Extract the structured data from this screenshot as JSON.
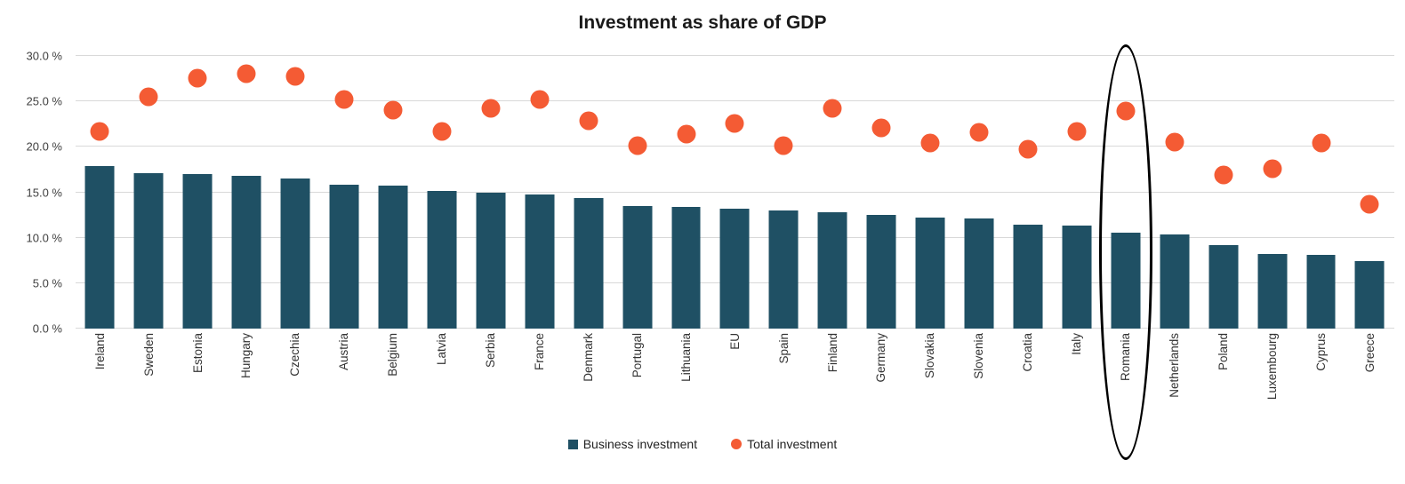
{
  "colors": {
    "bar": "#1f5064",
    "dot": "#f45b34",
    "grid": "#d9d9d9",
    "text": "#333333",
    "annotation": "#000000"
  },
  "y_axis": {
    "ticks": [
      {
        "label": "0.0 %",
        "value": 0
      },
      {
        "label": "5.0 %",
        "value": 5
      },
      {
        "label": "10.0 %",
        "value": 10
      },
      {
        "label": "15.0 %",
        "value": 15
      },
      {
        "label": "20.0 %",
        "value": 20
      },
      {
        "label": "25.0 %",
        "value": 25
      },
      {
        "label": "30.0 %",
        "value": 30
      }
    ]
  },
  "chart_data": {
    "type": "bar",
    "title": "Investment as share of GDP",
    "categories": [
      "Ireland",
      "Sweden",
      "Estonia",
      "Hungary",
      "Czechia",
      "Austria",
      "Belgium",
      "Latvia",
      "Serbia",
      "France",
      "Denmark",
      "Portugal",
      "Lithuania",
      "EU",
      "Spain",
      "Finland",
      "Germany",
      "Slovakia",
      "Slovenia",
      "Croatia",
      "Italy",
      "Romania",
      "Netherlands",
      "Poland",
      "Luxembourg",
      "Cyprus",
      "Greece"
    ],
    "series": [
      {
        "name": "Business investment",
        "type": "bar",
        "values": [
          17.9,
          17.1,
          17.0,
          16.8,
          16.5,
          15.8,
          15.7,
          15.1,
          15.0,
          14.8,
          14.4,
          13.5,
          13.4,
          13.2,
          13.0,
          12.8,
          12.5,
          12.2,
          12.1,
          11.4,
          11.3,
          10.6,
          10.4,
          9.2,
          8.2,
          8.1,
          7.4
        ]
      },
      {
        "name": "Total investment",
        "type": "scatter",
        "values": [
          21.7,
          25.5,
          27.6,
          28.0,
          27.8,
          25.2,
          24.0,
          21.7,
          24.2,
          25.2,
          22.9,
          20.1,
          21.4,
          22.6,
          20.1,
          24.2,
          22.1,
          20.4,
          21.6,
          19.7,
          21.7,
          23.9,
          20.5,
          16.9,
          17.6,
          20.4,
          13.7
        ]
      }
    ],
    "ylim": [
      0,
      30
    ],
    "ytick_step": 5,
    "grid": true,
    "legend_position": "bottom",
    "annotation": {
      "circled_category": "Romania"
    }
  }
}
